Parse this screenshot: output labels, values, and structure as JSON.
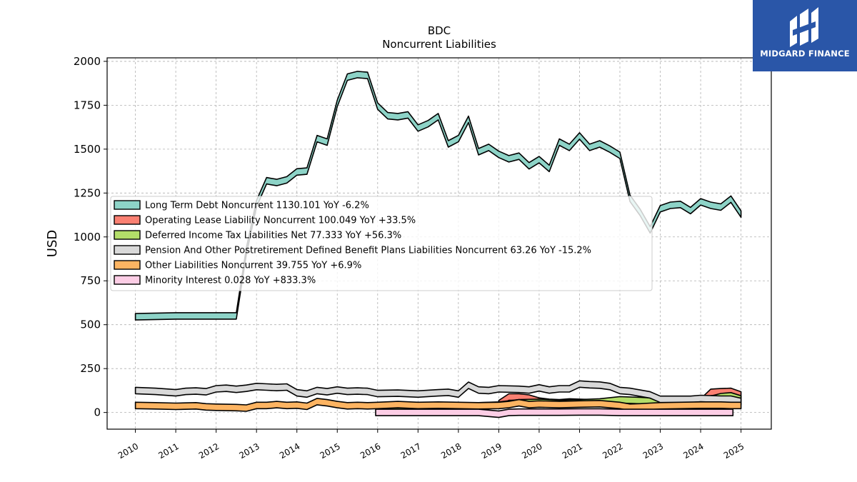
{
  "brand": {
    "name": "MIDGARD FINANCE",
    "logo_icon": "midgard-logo-icon",
    "background": "#2a56a8"
  },
  "chart_data": {
    "type": "area",
    "title": "BDC",
    "subtitle": "Noncurrent  Liabilities",
    "xlabel": "",
    "ylabel": "USD",
    "xlim": [
      2009.3,
      2025.75
    ],
    "ylim": [
      -95,
      2020
    ],
    "yticks": [
      0,
      250,
      500,
      750,
      1000,
      1250,
      1500,
      1750,
      2000
    ],
    "xticks": [
      "2010",
      "2011",
      "2012",
      "2013",
      "2014",
      "2015",
      "2016",
      "2017",
      "2018",
      "2019",
      "2020",
      "2021",
      "2022",
      "2023",
      "2024",
      "2025"
    ],
    "grid": true,
    "legend_position": "center-left",
    "series": [
      {
        "name": "Long Term Debt Noncurrent  1130.101 YoY -6.2%",
        "color": "#8dd3c7",
        "points": [
          [
            2010.0,
            545
          ],
          [
            2011.0,
            550
          ],
          [
            2012.0,
            550
          ],
          [
            2012.5,
            550
          ],
          [
            2012.75,
            920
          ],
          [
            2013.0,
            1190
          ],
          [
            2013.25,
            1320
          ],
          [
            2013.5,
            1310
          ],
          [
            2013.75,
            1325
          ],
          [
            2014.0,
            1370
          ],
          [
            2014.25,
            1375
          ],
          [
            2014.5,
            1560
          ],
          [
            2014.75,
            1540
          ],
          [
            2015.0,
            1760
          ],
          [
            2015.25,
            1910
          ],
          [
            2015.5,
            1925
          ],
          [
            2015.75,
            1920
          ],
          [
            2016.0,
            1745
          ],
          [
            2016.25,
            1690
          ],
          [
            2016.5,
            1685
          ],
          [
            2016.75,
            1695
          ],
          [
            2017.0,
            1620
          ],
          [
            2017.25,
            1645
          ],
          [
            2017.5,
            1685
          ],
          [
            2017.75,
            1530
          ],
          [
            2018.0,
            1560
          ],
          [
            2018.25,
            1670
          ],
          [
            2018.5,
            1485
          ],
          [
            2018.75,
            1510
          ],
          [
            2019.0,
            1470
          ],
          [
            2019.25,
            1445
          ],
          [
            2019.5,
            1460
          ],
          [
            2019.75,
            1405
          ],
          [
            2020.0,
            1440
          ],
          [
            2020.25,
            1390
          ],
          [
            2020.5,
            1540
          ],
          [
            2020.75,
            1510
          ],
          [
            2021.0,
            1575
          ],
          [
            2021.25,
            1510
          ],
          [
            2021.5,
            1530
          ],
          [
            2021.75,
            1500
          ],
          [
            2022.0,
            1465
          ],
          [
            2022.25,
            1220
          ],
          [
            2022.5,
            1140
          ],
          [
            2022.75,
            1040
          ],
          [
            2023.0,
            1160
          ],
          [
            2023.25,
            1180
          ],
          [
            2023.5,
            1185
          ],
          [
            2023.75,
            1150
          ],
          [
            2024.0,
            1200
          ],
          [
            2024.25,
            1180
          ],
          [
            2024.5,
            1170
          ],
          [
            2024.75,
            1215
          ],
          [
            2025.0,
            1130
          ]
        ]
      },
      {
        "name": "Operating Lease Liability Noncurrent  100.049 YoY +33.5%",
        "color": "#fb8072",
        "points": [
          [
            2019.0,
            50
          ],
          [
            2019.25,
            88
          ],
          [
            2019.5,
            88
          ],
          [
            2019.75,
            82
          ],
          [
            2020.0,
            65
          ],
          [
            2020.25,
            58
          ],
          [
            2020.5,
            55
          ],
          [
            2020.75,
            60
          ],
          [
            2021.0,
            58
          ],
          [
            2021.25,
            56
          ],
          [
            2021.5,
            58
          ],
          [
            2021.75,
            55
          ],
          [
            2022.0,
            60
          ],
          [
            2022.25,
            55
          ],
          [
            2022.5,
            50
          ],
          [
            2022.75,
            45
          ],
          [
            2023.0,
            45
          ],
          [
            2023.25,
            47
          ],
          [
            2023.5,
            48
          ],
          [
            2023.75,
            50
          ],
          [
            2024.0,
            60
          ],
          [
            2024.25,
            115
          ],
          [
            2024.5,
            118
          ],
          [
            2024.75,
            120
          ],
          [
            2025.0,
            100
          ]
        ]
      },
      {
        "name": "Deferred Income Tax Liabilities Net  77.333 YoY +56.3%",
        "color": "#b3de69",
        "points": [
          [
            2016.0,
            30
          ],
          [
            2016.5,
            32
          ],
          [
            2017.0,
            30
          ],
          [
            2017.5,
            35
          ],
          [
            2018.0,
            38
          ],
          [
            2018.5,
            38
          ],
          [
            2019.0,
            42
          ],
          [
            2019.5,
            55
          ],
          [
            2020.0,
            58
          ],
          [
            2020.5,
            52
          ],
          [
            2021.0,
            55
          ],
          [
            2021.5,
            60
          ],
          [
            2022.0,
            72
          ],
          [
            2022.25,
            70
          ],
          [
            2022.5,
            68
          ],
          [
            2022.75,
            65
          ],
          [
            2023.0,
            50
          ],
          [
            2023.5,
            52
          ],
          [
            2024.0,
            60
          ],
          [
            2024.25,
            75
          ],
          [
            2024.5,
            90
          ],
          [
            2024.75,
            95
          ],
          [
            2025.0,
            77
          ]
        ]
      },
      {
        "name": "Pension And Other Postretirement Defined Benefit Plans Liabilities Noncurrent  63.26 YoY -15.2%",
        "color": "#d9d9d9",
        "points": [
          [
            2010.0,
            125
          ],
          [
            2010.5,
            120
          ],
          [
            2011.0,
            112
          ],
          [
            2011.25,
            120
          ],
          [
            2011.5,
            122
          ],
          [
            2011.75,
            118
          ],
          [
            2012.0,
            135
          ],
          [
            2012.25,
            138
          ],
          [
            2012.5,
            132
          ],
          [
            2012.75,
            138
          ],
          [
            2013.0,
            148
          ],
          [
            2013.25,
            145
          ],
          [
            2013.5,
            142
          ],
          [
            2013.75,
            145
          ],
          [
            2014.0,
            112
          ],
          [
            2014.25,
            105
          ],
          [
            2014.5,
            125
          ],
          [
            2014.75,
            118
          ],
          [
            2015.0,
            128
          ],
          [
            2015.25,
            120
          ],
          [
            2015.5,
            122
          ],
          [
            2015.75,
            120
          ],
          [
            2016.0,
            108
          ],
          [
            2016.5,
            110
          ],
          [
            2017.0,
            105
          ],
          [
            2017.5,
            112
          ],
          [
            2017.75,
            115
          ],
          [
            2018.0,
            105
          ],
          [
            2018.25,
            155
          ],
          [
            2018.5,
            128
          ],
          [
            2018.75,
            125
          ],
          [
            2019.0,
            135
          ],
          [
            2019.5,
            132
          ],
          [
            2019.75,
            128
          ],
          [
            2020.0,
            140
          ],
          [
            2020.25,
            128
          ],
          [
            2020.5,
            135
          ],
          [
            2020.75,
            135
          ],
          [
            2021.0,
            162
          ],
          [
            2021.25,
            158
          ],
          [
            2021.5,
            156
          ],
          [
            2021.75,
            148
          ],
          [
            2022.0,
            125
          ],
          [
            2022.25,
            120
          ],
          [
            2022.5,
            110
          ],
          [
            2022.75,
            100
          ],
          [
            2023.0,
            75
          ],
          [
            2023.5,
            75
          ],
          [
            2023.75,
            75
          ],
          [
            2024.0,
            80
          ],
          [
            2024.25,
            78
          ],
          [
            2024.5,
            76
          ],
          [
            2024.75,
            76
          ],
          [
            2025.0,
            63
          ]
        ]
      },
      {
        "name": "Other Liabilities Noncurrent  39.755 YoY +6.9%",
        "color": "#fdb462",
        "points": [
          [
            2010.0,
            40
          ],
          [
            2010.5,
            38
          ],
          [
            2011.0,
            35
          ],
          [
            2011.5,
            38
          ],
          [
            2011.75,
            32
          ],
          [
            2012.0,
            30
          ],
          [
            2012.5,
            28
          ],
          [
            2012.75,
            25
          ],
          [
            2013.0,
            40
          ],
          [
            2013.25,
            40
          ],
          [
            2013.5,
            45
          ],
          [
            2013.75,
            40
          ],
          [
            2014.0,
            42
          ],
          [
            2014.25,
            35
          ],
          [
            2014.5,
            62
          ],
          [
            2014.75,
            55
          ],
          [
            2015.0,
            45
          ],
          [
            2015.25,
            38
          ],
          [
            2015.5,
            40
          ],
          [
            2015.75,
            38
          ],
          [
            2016.0,
            40
          ],
          [
            2016.5,
            45
          ],
          [
            2017.0,
            40
          ],
          [
            2017.5,
            42
          ],
          [
            2018.0,
            40
          ],
          [
            2018.5,
            38
          ],
          [
            2019.0,
            40
          ],
          [
            2019.25,
            45
          ],
          [
            2019.5,
            55
          ],
          [
            2019.75,
            45
          ],
          [
            2020.0,
            48
          ],
          [
            2020.5,
            45
          ],
          [
            2021.0,
            48
          ],
          [
            2021.5,
            50
          ],
          [
            2021.75,
            45
          ],
          [
            2022.0,
            40
          ],
          [
            2022.25,
            30
          ],
          [
            2022.5,
            32
          ],
          [
            2022.75,
            35
          ],
          [
            2023.0,
            38
          ],
          [
            2023.5,
            40
          ],
          [
            2024.0,
            42
          ],
          [
            2024.5,
            42
          ],
          [
            2024.75,
            40
          ],
          [
            2025.0,
            40
          ]
        ]
      },
      {
        "name": "Minority Interest  0.028 YoY +833.3%",
        "color": "#fccde5",
        "points": [
          [
            2015.95,
            0
          ],
          [
            2016.0,
            0
          ],
          [
            2016.5,
            0
          ],
          [
            2017.0,
            0
          ],
          [
            2017.5,
            0
          ],
          [
            2018.0,
            0
          ],
          [
            2018.5,
            0
          ],
          [
            2019.0,
            -10
          ],
          [
            2019.25,
            0
          ],
          [
            2019.5,
            2
          ],
          [
            2020.0,
            2
          ],
          [
            2020.5,
            2
          ],
          [
            2021.0,
            3
          ],
          [
            2021.5,
            3
          ],
          [
            2022.0,
            0
          ],
          [
            2022.5,
            0
          ],
          [
            2023.0,
            0
          ],
          [
            2023.5,
            0
          ],
          [
            2024.0,
            0
          ],
          [
            2024.5,
            0
          ],
          [
            2024.8,
            0
          ]
        ]
      }
    ]
  }
}
